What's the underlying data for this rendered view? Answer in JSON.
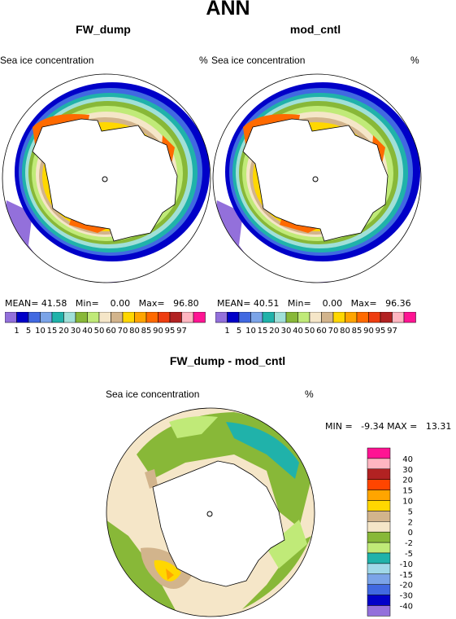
{
  "figure": {
    "title": "ANN"
  },
  "panels": [
    {
      "title": "FW_dump",
      "variable": "Sea ice concentration",
      "units": "%",
      "stats": {
        "mean_label": "MEAN=",
        "mean": "41.58",
        "min_label": "Min=",
        "min": "0.00",
        "max_label": "Max=",
        "max": "96.80"
      }
    },
    {
      "title": "mod_cntl",
      "variable": "Sea ice concentration",
      "units": "%",
      "stats": {
        "mean_label": "MEAN=",
        "mean": "40.51",
        "min_label": "Min=",
        "min": "0.00",
        "max_label": "Max=",
        "max": "96.36"
      }
    }
  ],
  "diff_panel": {
    "title": "FW_dump - mod_cntl",
    "variable": "Sea ice concentration",
    "units": "%",
    "stats_text": "MIN =   -9.34 MAX =   13.31"
  },
  "colorbar_top": {
    "labels": [
      "1",
      "5",
      "10",
      "15",
      "20",
      "30",
      "40",
      "50",
      "60",
      "70",
      "80",
      "85",
      "90",
      "95",
      "97"
    ],
    "colors": [
      "#9370db",
      "#0000c8",
      "#4169e1",
      "#7ba4e8",
      "#20b2aa",
      "#a0e0d8",
      "#88b838",
      "#c0ea78",
      "#f5e6c8",
      "#d2b48c",
      "#ffd700",
      "#ffa500",
      "#ff6a00",
      "#ee3d10",
      "#b22222",
      "#ffb6c1",
      "#ff1493"
    ]
  },
  "colorbar_diff": {
    "labels": [
      "40",
      "30",
      "20",
      "15",
      "10",
      "5",
      "2",
      "0",
      "-2",
      "-5",
      "-10",
      "-15",
      "-20",
      "-30",
      "-40"
    ],
    "colors": [
      "#ff1493",
      "#ffb6c1",
      "#b22222",
      "#ff4500",
      "#ffa500",
      "#ffd700",
      "#d2b48c",
      "#f5e6c8",
      "#88b838",
      "#c0ea78",
      "#20b2aa",
      "#a0d8e8",
      "#7ba4e8",
      "#4169e1",
      "#0000c8",
      "#9370db"
    ]
  }
}
